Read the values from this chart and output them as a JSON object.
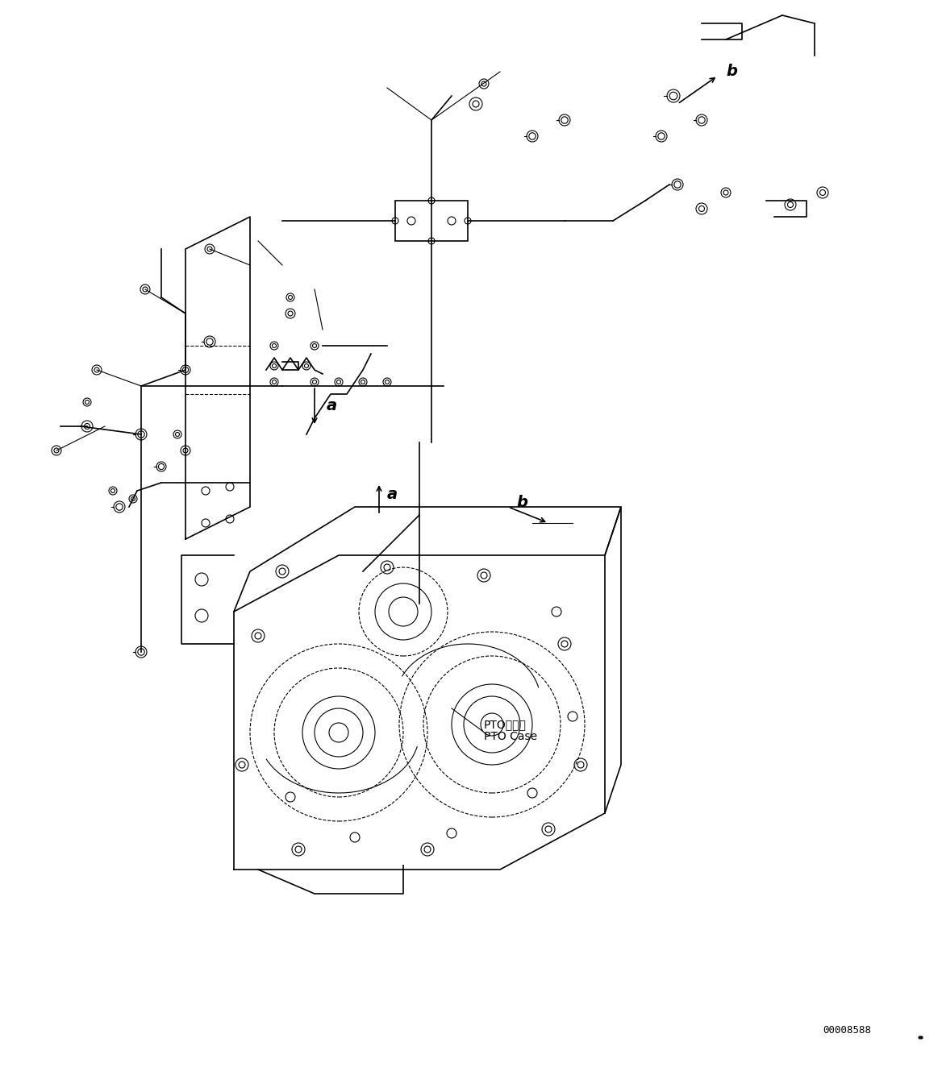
{
  "background_color": "#ffffff",
  "line_color": "#000000",
  "fig_width": 11.68,
  "fig_height": 13.29,
  "dpi": 100,
  "part_number": "00008588",
  "label_a": "a",
  "label_b": "b",
  "pto_case_jp": "PTOケース",
  "pto_case_en": "PTO Case"
}
